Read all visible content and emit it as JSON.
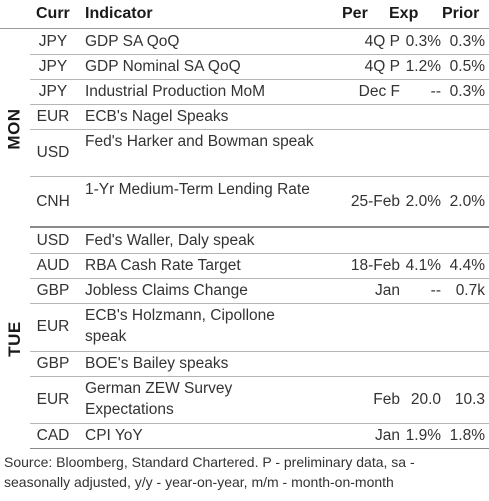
{
  "headers": {
    "curr": "Curr",
    "indicator": "Indicator",
    "per": "Per",
    "exp": "Exp",
    "prior": "Prior"
  },
  "days": {
    "mon": "MON",
    "tue": "TUE"
  },
  "rows": [
    {
      "curr": "JPY",
      "indicator": "GDP SA QoQ",
      "per": "4Q P",
      "exp": "0.3%",
      "prior": "0.3%"
    },
    {
      "curr": "JPY",
      "indicator": "GDP Nominal SA QoQ",
      "per": "4Q P",
      "exp": "1.2%",
      "prior": "0.5%"
    },
    {
      "curr": "JPY",
      "indicator": "Industrial Production MoM",
      "per": "Dec F",
      "exp": "--",
      "prior": "0.3%"
    },
    {
      "curr": "EUR",
      "indicator": "ECB's Nagel Speaks",
      "per": "",
      "exp": "",
      "prior": ""
    },
    {
      "curr": "USD",
      "indicator": "Fed's Harker and Bowman speak",
      "per": "",
      "exp": "",
      "prior": ""
    },
    {
      "curr": "CNH",
      "indicator": "1-Yr Medium-Term Lending Rate",
      "per": "25-Feb",
      "exp": "2.0%",
      "prior": "2.0%"
    },
    {
      "curr": "USD",
      "indicator": "Fed's Waller, Daly speak",
      "per": "",
      "exp": "",
      "prior": ""
    },
    {
      "curr": "AUD",
      "indicator": "RBA Cash Rate Target",
      "per": "18-Feb",
      "exp": "4.1%",
      "prior": "4.4%"
    },
    {
      "curr": "GBP",
      "indicator": "Jobless Claims Change",
      "per": "Jan",
      "exp": "--",
      "prior": "0.7k"
    },
    {
      "curr": "EUR",
      "indicator": "ECB's Holzmann, Cipollone speak",
      "per": "",
      "exp": "",
      "prior": ""
    },
    {
      "curr": "GBP",
      "indicator": "BOE's Bailey speaks",
      "per": "",
      "exp": "",
      "prior": ""
    },
    {
      "curr": "EUR",
      "indicator": "German ZEW Survey Expectations",
      "per": "Feb",
      "exp": "20.0",
      "prior": "10.3"
    },
    {
      "curr": "CAD",
      "indicator": "CPI YoY",
      "per": "Jan",
      "exp": "1.9%",
      "prior": "1.8%"
    }
  ],
  "footer": "Source: Bloomberg, Standard Chartered. P - preliminary data, sa - seasonally adjusted, y/y - year-on-year, m/m - month-on-month"
}
